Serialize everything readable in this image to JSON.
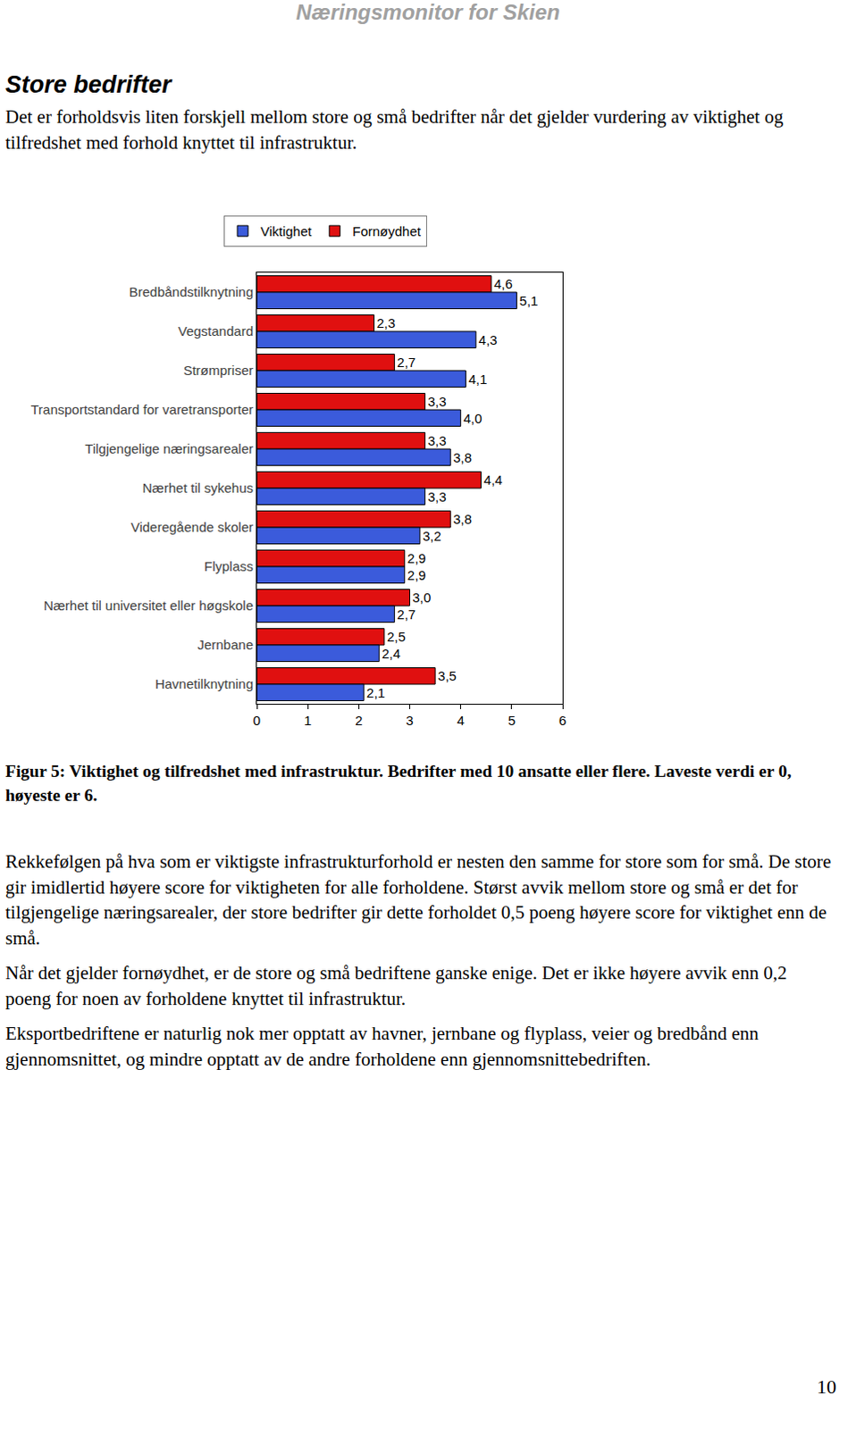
{
  "header": "Næringsmonitor for Skien",
  "heading": "Store bedrifter",
  "intro": "Det er forholdsvis liten forskjell mellom store og små bedrifter når det gjelder vurdering av viktighet og tilfredshet med forhold knyttet til infrastruktur.",
  "chart_data": {
    "type": "bar",
    "orientation": "horizontal",
    "categories": [
      "Bredbåndstilknytning",
      "Vegstandard",
      "Strømpriser",
      "Transportstandard for varetransporter",
      "Tilgjengelige næringsarealer",
      "Nærhet til sykehus",
      "Videregående skoler",
      "Flyplass",
      "Nærhet til universitet eller høgskole",
      "Jernbane",
      "Havnetilknytning"
    ],
    "series": [
      {
        "name": "Viktighet",
        "color": "#3b5bdb",
        "values": [
          5.1,
          4.3,
          4.1,
          4.0,
          3.8,
          3.3,
          3.2,
          2.9,
          2.7,
          2.4,
          2.1
        ],
        "value_labels": [
          "5,1",
          "4,3",
          "4,1",
          "4,0",
          "3,8",
          "3,3",
          "3,2",
          "2,9",
          "2,7",
          "2,4",
          "2,1"
        ]
      },
      {
        "name": "Fornøydhet",
        "color": "#e01010",
        "values": [
          4.6,
          2.3,
          2.7,
          3.3,
          3.3,
          4.4,
          3.8,
          2.9,
          3.0,
          2.5,
          3.5
        ],
        "value_labels": [
          "4,6",
          "2,3",
          "2,7",
          "3,3",
          "3,3",
          "4,4",
          "3,8",
          "2,9",
          "3,0",
          "2,5",
          "3,5"
        ]
      }
    ],
    "xlim": [
      0,
      6
    ],
    "xticks": [
      0,
      1,
      2,
      3,
      4,
      5,
      6
    ],
    "grid": false,
    "legend": "top",
    "data_labels": true
  },
  "caption": "Figur 5: Viktighet og tilfredshet med infrastruktur. Bedrifter med 10 ansatte eller flere. Laveste verdi er 0, høyeste er 6.",
  "paragraphs": [
    "Rekkefølgen på hva som er viktigste infrastrukturforhold er nesten den samme for store som for små. De store gir imidlertid høyere score for viktigheten for alle forholdene. Størst avvik mellom store og små er det for tilgjengelige næringsarealer, der store bedrifter gir dette forholdet 0,5 poeng høyere score for viktighet enn de små.",
    "Når det gjelder fornøydhet, er de store og små bedriftene ganske enige. Det er ikke høyere avvik enn 0,2 poeng for noen av forholdene knyttet til infrastruktur.",
    "Eksportbedriftene er naturlig nok mer opptatt av havner, jernbane og flyplass, veier og bredbånd enn gjennomsnittet, og mindre opptatt av de andre forholdene enn gjennomsnittebedriften."
  ],
  "page_number": "10"
}
